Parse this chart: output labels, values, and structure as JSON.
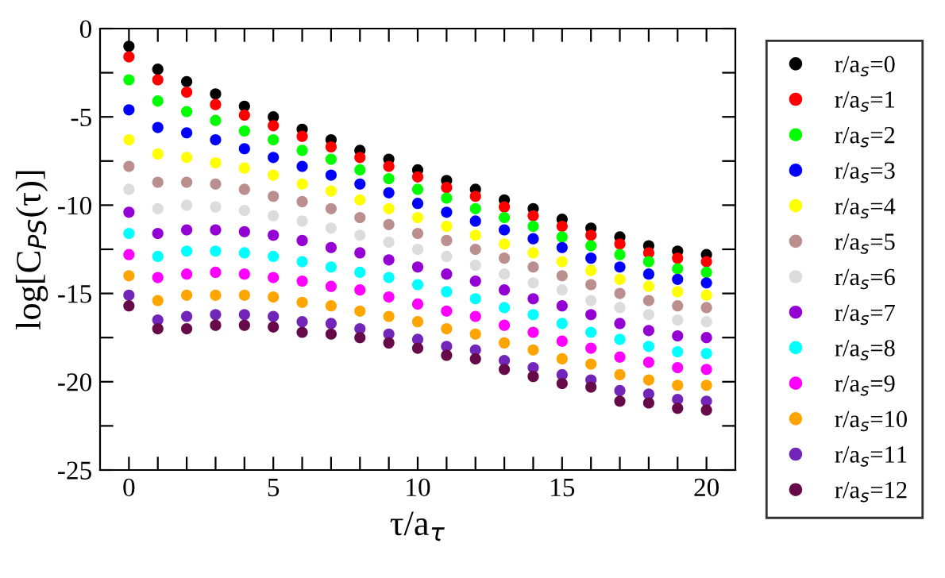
{
  "chart_data": {
    "type": "scatter",
    "xlabel": "τ/a$_{τ}$",
    "ylabel": "log[C$_{PS}$(τ)]",
    "x": [
      0,
      1,
      2,
      3,
      4,
      5,
      6,
      7,
      8,
      9,
      10,
      11,
      12,
      13,
      14,
      15,
      16,
      17,
      18,
      19,
      20
    ],
    "xlim": [
      -1,
      21
    ],
    "ylim": [
      -25,
      0
    ],
    "xticks": [
      0,
      {
        "value": 1,
        "label": null
      },
      {
        "value": 2,
        "label": null
      },
      {
        "value": 3,
        "label": null
      },
      {
        "value": 4,
        "label": null
      },
      5,
      {
        "value": 6,
        "label": null
      },
      {
        "value": 7,
        "label": null
      },
      {
        "value": 8,
        "label": null
      },
      {
        "value": 9,
        "label": null
      },
      10,
      {
        "value": 11,
        "label": null
      },
      {
        "value": 12,
        "label": null
      },
      {
        "value": 13,
        "label": null
      },
      {
        "value": 14,
        "label": null
      },
      15,
      {
        "value": 16,
        "label": null
      },
      {
        "value": 17,
        "label": null
      },
      {
        "value": 18,
        "label": null
      },
      {
        "value": 19,
        "label": null
      },
      20
    ],
    "yticks": [
      -25,
      {
        "value": -22.5,
        "label": null
      },
      -20,
      {
        "value": -17.5,
        "label": null
      },
      -15,
      {
        "value": -12.5,
        "label": null
      },
      -10,
      {
        "value": -7.5,
        "label": null
      },
      -5,
      {
        "value": -2.5,
        "label": null
      },
      0
    ],
    "marker": "circle",
    "legend": "right",
    "grid": false,
    "series": [
      {
        "name": "r/a$_{s}$=0",
        "color": "#000000",
        "values": [
          -1.0,
          -2.3,
          -3.0,
          -3.7,
          -4.4,
          -5.0,
          -5.7,
          -6.3,
          -6.9,
          -7.4,
          -8.0,
          -8.6,
          -9.1,
          -9.7,
          -10.2,
          -10.8,
          -11.3,
          -11.8,
          -12.3,
          -12.6,
          -12.8
        ]
      },
      {
        "name": "r/a$_{s}$=1",
        "color": "#ff0000",
        "values": [
          -1.6,
          -2.9,
          -3.6,
          -4.3,
          -4.9,
          -5.5,
          -6.1,
          -6.7,
          -7.3,
          -7.8,
          -8.4,
          -9.0,
          -9.5,
          -10.1,
          -10.6,
          -11.2,
          -11.7,
          -12.2,
          -12.7,
          -13.0,
          -13.2
        ]
      },
      {
        "name": "r/a$_{s}$=2",
        "color": "#00ff00",
        "values": [
          -2.9,
          -4.1,
          -4.7,
          -5.2,
          -5.8,
          -6.3,
          -6.9,
          -7.4,
          -8.0,
          -8.5,
          -9.1,
          -9.6,
          -10.2,
          -10.7,
          -11.2,
          -11.8,
          -12.3,
          -12.8,
          -13.2,
          -13.6,
          -13.8
        ]
      },
      {
        "name": "r/a$_{s}$=3",
        "color": "#0000ff",
        "values": [
          -4.6,
          -5.6,
          -5.9,
          -6.3,
          -6.8,
          -7.3,
          -7.8,
          -8.3,
          -8.8,
          -9.3,
          -9.9,
          -10.4,
          -10.9,
          -11.4,
          -11.9,
          -12.4,
          -13.0,
          -13.5,
          -13.9,
          -14.2,
          -14.4
        ]
      },
      {
        "name": "r/a$_{s}$=4",
        "color": "#ffff00",
        "values": [
          -6.3,
          -7.1,
          -7.3,
          -7.6,
          -7.9,
          -8.3,
          -8.8,
          -9.2,
          -9.7,
          -10.2,
          -10.7,
          -11.2,
          -11.7,
          -12.2,
          -12.7,
          -13.2,
          -13.7,
          -14.2,
          -14.6,
          -14.9,
          -15.1
        ]
      },
      {
        "name": "r/a$_{s}$=5",
        "color": "#bc8f8f",
        "values": [
          -7.8,
          -8.7,
          -8.7,
          -8.8,
          -9.1,
          -9.5,
          -9.8,
          -10.2,
          -10.7,
          -11.1,
          -11.6,
          -12.0,
          -12.5,
          -13.0,
          -13.5,
          -14.0,
          -14.5,
          -15.0,
          -15.4,
          -15.7,
          -15.8
        ]
      },
      {
        "name": "r/a$_{s}$=6",
        "color": "#dcdcdc",
        "values": [
          -9.1,
          -10.2,
          -10.0,
          -10.1,
          -10.3,
          -10.6,
          -10.9,
          -11.3,
          -11.7,
          -12.1,
          -12.5,
          -12.9,
          -13.4,
          -13.9,
          -14.4,
          -14.8,
          -15.4,
          -15.8,
          -16.2,
          -16.5,
          -16.6
        ]
      },
      {
        "name": "r/a$_{s}$=7",
        "color": "#9400d3",
        "values": [
          -10.4,
          -11.6,
          -11.4,
          -11.4,
          -11.5,
          -11.7,
          -12.0,
          -12.4,
          -12.7,
          -13.1,
          -13.5,
          -13.9,
          -14.3,
          -14.8,
          -15.3,
          -15.7,
          -16.2,
          -16.7,
          -17.1,
          -17.4,
          -17.5
        ]
      },
      {
        "name": "r/a$_{s}$=8",
        "color": "#00ffff",
        "values": [
          -11.6,
          -12.9,
          -12.6,
          -12.6,
          -12.7,
          -12.9,
          -13.2,
          -13.5,
          -13.8,
          -14.1,
          -14.5,
          -14.9,
          -15.3,
          -15.8,
          -16.2,
          -16.7,
          -17.2,
          -17.6,
          -18.0,
          -18.3,
          -18.4
        ]
      },
      {
        "name": "r/a$_{s}$=9",
        "color": "#ff00ff",
        "values": [
          -12.8,
          -14.1,
          -13.9,
          -13.8,
          -13.9,
          -14.1,
          -14.3,
          -14.6,
          -14.8,
          -15.2,
          -15.6,
          -16.0,
          -16.3,
          -16.8,
          -17.2,
          -17.7,
          -18.1,
          -18.6,
          -18.9,
          -19.2,
          -19.3
        ]
      },
      {
        "name": "r/a$_{s}$=10",
        "color": "#ffa500",
        "values": [
          -14.0,
          -15.4,
          -15.1,
          -15.1,
          -15.1,
          -15.2,
          -15.5,
          -15.7,
          -16.0,
          -16.3,
          -16.6,
          -17.0,
          -17.3,
          -17.8,
          -18.2,
          -18.7,
          -19.0,
          -19.6,
          -19.9,
          -20.2,
          -20.2
        ]
      },
      {
        "name": "r/a$_{s}$=11",
        "color": "#7226b9",
        "values": [
          -15.1,
          -16.5,
          -16.3,
          -16.2,
          -16.2,
          -16.3,
          -16.6,
          -16.7,
          -17.0,
          -17.3,
          -17.6,
          -18.0,
          -18.2,
          -18.8,
          -19.2,
          -19.6,
          -19.9,
          -20.5,
          -20.7,
          -21.0,
          -21.1
        ]
      },
      {
        "name": "r/a$_{s}$=12",
        "color": "#670a4a",
        "values": [
          -15.7,
          -17.0,
          -17.0,
          -16.8,
          -16.8,
          -16.9,
          -17.2,
          -17.3,
          -17.5,
          -17.8,
          -18.1,
          -18.5,
          -18.7,
          -19.3,
          -19.7,
          -20.1,
          -20.3,
          -21.1,
          -21.2,
          -21.5,
          -21.6
        ]
      }
    ]
  }
}
